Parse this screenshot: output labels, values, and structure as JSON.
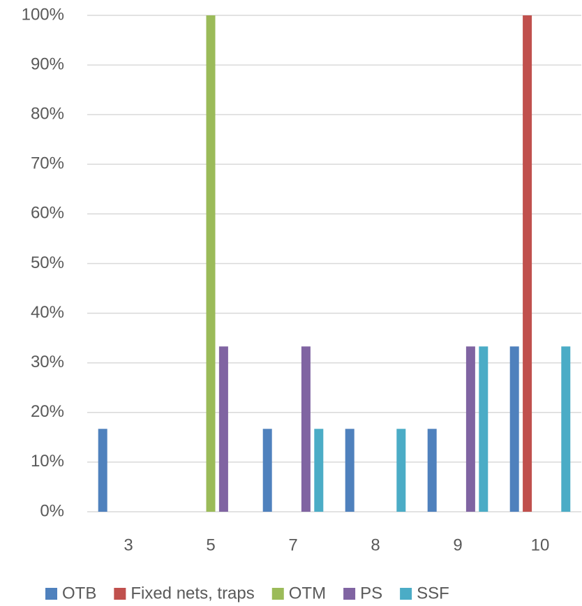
{
  "chart_data": {
    "type": "bar",
    "categories": [
      "3",
      "5",
      "7",
      "8",
      "9",
      "10"
    ],
    "series": [
      {
        "name": "OTB",
        "color": "#4f81bd",
        "values": [
          16.7,
          0,
          16.7,
          16.7,
          16.7,
          33.3
        ]
      },
      {
        "name": "Fixed nets, traps",
        "color": "#c0504d",
        "values": [
          0,
          0,
          0,
          0,
          0,
          100
        ]
      },
      {
        "name": "OTM",
        "color": "#9bbb59",
        "values": [
          0,
          100,
          0,
          0,
          0,
          0
        ]
      },
      {
        "name": "PS",
        "color": "#8064a2",
        "values": [
          0,
          33.3,
          33.3,
          0,
          33.3,
          0
        ]
      },
      {
        "name": "SSF",
        "color": "#4bacc6",
        "values": [
          0,
          0,
          16.7,
          16.7,
          33.3,
          33.3
        ]
      }
    ],
    "ylim": [
      0,
      100
    ],
    "yticks": [
      {
        "value": 0,
        "label": "0%"
      },
      {
        "value": 10,
        "label": "10%"
      },
      {
        "value": 20,
        "label": "20%"
      },
      {
        "value": 30,
        "label": "30%"
      },
      {
        "value": 40,
        "label": "40%"
      },
      {
        "value": 50,
        "label": "50%"
      },
      {
        "value": 60,
        "label": "60%"
      },
      {
        "value": 70,
        "label": "70%"
      },
      {
        "value": 80,
        "label": "80%"
      },
      {
        "value": 90,
        "label": "90%"
      },
      {
        "value": 100,
        "label": "100%"
      }
    ],
    "grid": true,
    "legend": "bottom"
  }
}
